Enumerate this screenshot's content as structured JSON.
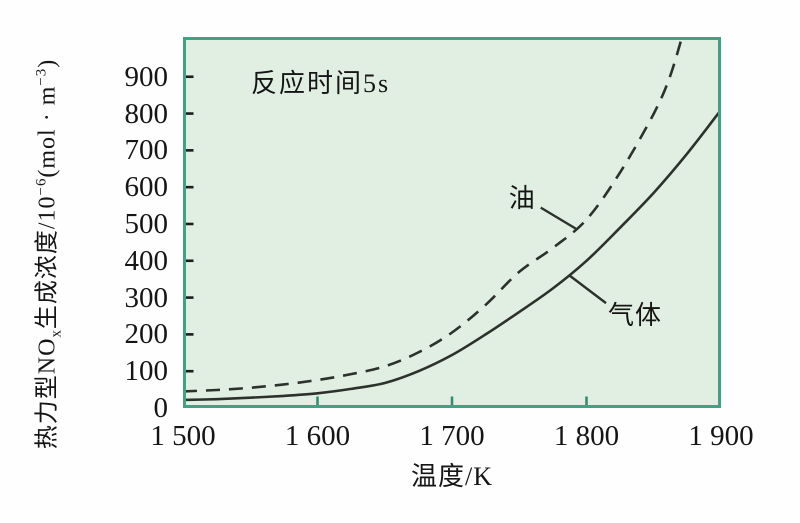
{
  "figure": {
    "annotation": "反应时间5s",
    "xlabel": "温度/K",
    "ylabel_parts": {
      "p1": "热力型NO",
      "sub1": "x",
      "p2": "生成浓度/10",
      "sup1": "−6",
      "p3": "(mol · m",
      "sup2": "−3",
      "p4": ")"
    }
  },
  "chart_data": {
    "type": "line",
    "title": "",
    "annotation": "反应时间5s",
    "xlabel": "温度/K",
    "ylabel": "热力型NOx生成浓度/10^−6 (mol·m^−3)",
    "xlim": [
      1500,
      1900
    ],
    "ylim": [
      0,
      1008
    ],
    "xticks": [
      1500,
      1600,
      1700,
      1800,
      1900
    ],
    "xtick_labels": [
      "1 500",
      "1 600",
      "1 700",
      "1 800",
      "1 900"
    ],
    "yticks": [
      0,
      100,
      200,
      300,
      400,
      500,
      600,
      700,
      800,
      900
    ],
    "grid": false,
    "legend_position": "inline-labels-on-curves",
    "colors": {
      "plot_background": "#e1efe3",
      "plot_border": "#3fa383",
      "curve": "#2c312c",
      "left_tick": "#1c1c1c",
      "bottom_tick": "#2f8f70",
      "text": "#151515"
    },
    "series": [
      {
        "name": "油",
        "line_style": "dashed",
        "x": [
          1500,
          1525,
          1550,
          1575,
          1600,
          1625,
          1650,
          1675,
          1700,
          1725,
          1750,
          1775,
          1800,
          1825,
          1850,
          1862,
          1872
        ],
        "y": [
          45,
          49,
          55,
          64,
          76,
          92,
          113,
          151,
          205,
          280,
          370,
          435,
          512,
          640,
          800,
          900,
          1020
        ]
      },
      {
        "name": "气体",
        "line_style": "solid",
        "x": [
          1500,
          1525,
          1550,
          1575,
          1600,
          1625,
          1650,
          1675,
          1700,
          1725,
          1750,
          1775,
          1800,
          1825,
          1850,
          1875,
          1900
        ],
        "y": [
          22,
          24,
          28,
          33,
          40,
          52,
          68,
          100,
          144,
          200,
          261,
          325,
          400,
          490,
          585,
          692,
          810
        ]
      }
    ]
  }
}
